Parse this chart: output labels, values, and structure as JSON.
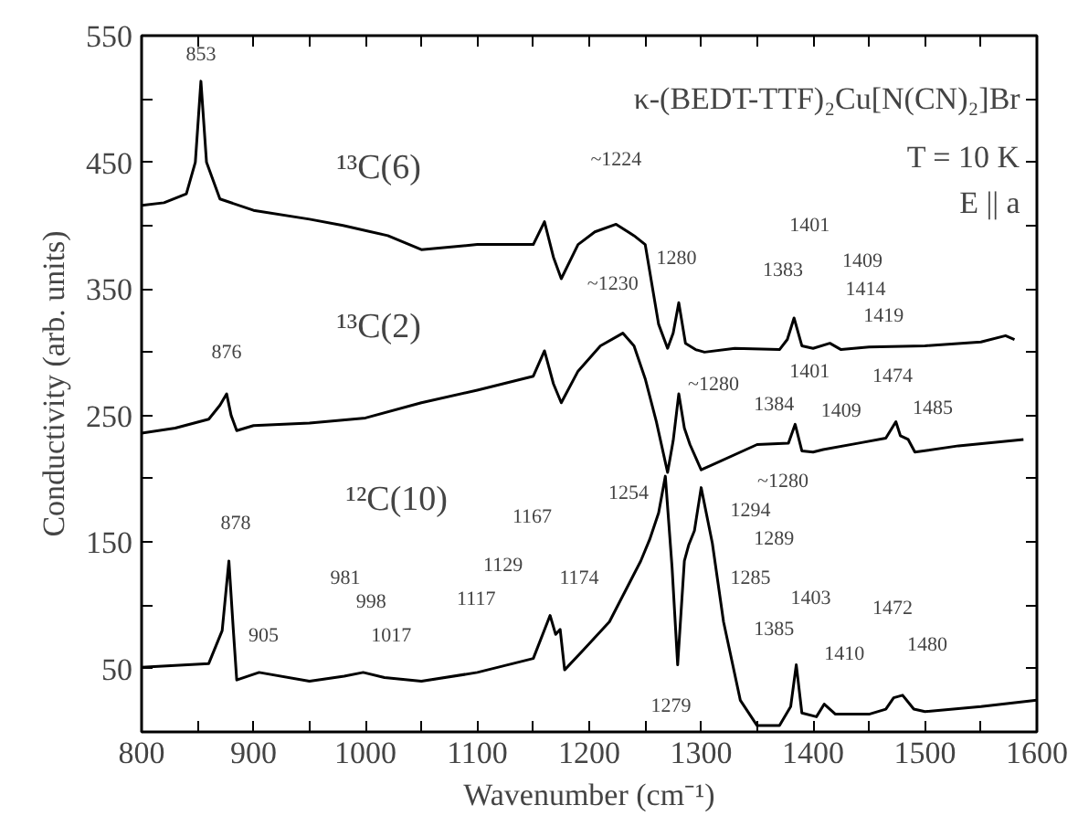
{
  "chart_data": {
    "type": "line",
    "title": "κ-(BEDT-TTF)₂Cu[N(CN)₂]Br",
    "xlabel": "Wavenumber (cm⁻¹)",
    "ylabel": "Conductivity (arb. units)",
    "xlim": [
      800,
      1600
    ],
    "ylim": [
      0,
      550
    ],
    "xticks": [
      800,
      {
        "value": 850,
        "label": null
      },
      900,
      {
        "value": 950,
        "label": null
      },
      1000,
      {
        "value": 1050,
        "label": null
      },
      1100,
      {
        "value": 1150,
        "label": null
      },
      1200,
      {
        "value": 1250,
        "label": null
      },
      1300,
      {
        "value": 1350,
        "label": null
      },
      1400,
      {
        "value": 1450,
        "label": null
      },
      1500,
      {
        "value": 1550,
        "label": null
      },
      1600
    ],
    "yticks": [
      50,
      {
        "value": 100,
        "label": null
      },
      150,
      {
        "value": 200,
        "label": null
      },
      250,
      {
        "value": 300,
        "label": null
      },
      350,
      {
        "value": 400,
        "label": null
      },
      450,
      {
        "value": 500,
        "label": null
      },
      550
    ],
    "grid": false,
    "marker": "none",
    "line_style": "solid",
    "series": [
      {
        "color": "#000000",
        "x": [
          800,
          820,
          840,
          848,
          853,
          858,
          870,
          900,
          950,
          980,
          1020,
          1050,
          1100,
          1150,
          1160,
          1168,
          1175,
          1190,
          1205,
          1224,
          1240,
          1250,
          1262,
          1270,
          1275,
          1280,
          1286,
          1295,
          1303,
          1330,
          1370,
          1377,
          1383,
          1390,
          1400,
          1415,
          1425,
          1450,
          1500,
          1550,
          1572,
          1580
        ],
        "values": [
          416,
          418,
          425,
          450,
          514,
          450,
          421,
          412,
          405,
          400,
          392,
          381,
          385,
          385,
          403,
          375,
          358,
          385,
          395,
          401,
          392,
          385,
          322,
          303,
          315,
          339,
          307,
          302,
          300,
          303,
          302,
          310,
          327,
          305,
          303,
          307,
          302,
          304,
          305,
          308,
          313,
          310
        ]
      },
      {
        "color": "#000000",
        "x": [
          800,
          830,
          860,
          870,
          876,
          880,
          885,
          900,
          950,
          1000,
          1050,
          1100,
          1150,
          1160,
          1168,
          1175,
          1190,
          1210,
          1230,
          1240,
          1250,
          1260,
          1270,
          1275,
          1280,
          1285,
          1290,
          1300,
          1350,
          1378,
          1384,
          1390,
          1400,
          1409,
          1440,
          1465,
          1474,
          1478,
          1485,
          1491,
          1530,
          1588
        ],
        "values": [
          236,
          240,
          247,
          258,
          267,
          250,
          238,
          242,
          244,
          248,
          260,
          270,
          281,
          301,
          275,
          260,
          285,
          305,
          315,
          305,
          279,
          245,
          205,
          230,
          267,
          240,
          227,
          207,
          227,
          228,
          243,
          222,
          221,
          223,
          228,
          232,
          245,
          234,
          231,
          221,
          226,
          231
        ]
      },
      {
        "color": "#000000",
        "x": [
          800,
          860,
          872,
          878,
          882,
          885,
          905,
          950,
          981,
          998,
          1017,
          1050,
          1100,
          1150,
          1165,
          1170,
          1174,
          1178,
          1195,
          1218,
          1246,
          1254,
          1262,
          1268,
          1274,
          1279,
          1285,
          1289,
          1294,
          1300,
          1310,
          1320,
          1335,
          1350,
          1370,
          1380,
          1385,
          1390,
          1403,
          1410,
          1420,
          1450,
          1465,
          1472,
          1480,
          1490,
          1500,
          1550,
          1600
        ],
        "values": [
          51,
          54,
          80,
          135,
          80,
          41,
          47,
          40,
          44,
          47,
          43,
          40,
          47,
          58,
          92,
          77,
          81,
          49,
          65,
          87,
          135,
          152,
          173,
          202,
          130,
          53,
          135,
          148,
          159,
          193,
          149,
          87,
          25,
          5,
          5,
          20,
          53,
          15,
          12,
          22,
          14,
          14,
          18,
          27,
          29,
          18,
          16,
          20,
          25
        ]
      }
    ],
    "annotations": [
      "T = 10 K",
      "E || a",
      "¹³C(6)",
      "¹³C(2)",
      "¹²C(10)",
      "853",
      "~1224",
      "1280",
      "1383",
      "1401",
      "1409",
      "1414",
      "1419",
      "876",
      "~1230",
      "~1280",
      "1384",
      "1401",
      "1409",
      "1474",
      "1485",
      "878",
      "905",
      "981",
      "998",
      "1017",
      "1117",
      "1129",
      "1167",
      "1174",
      "~1280",
      "1254",
      "1294",
      "1289",
      "1285",
      "1403",
      "1385",
      "1410",
      "1472",
      "1480",
      "1279"
    ]
  }
}
